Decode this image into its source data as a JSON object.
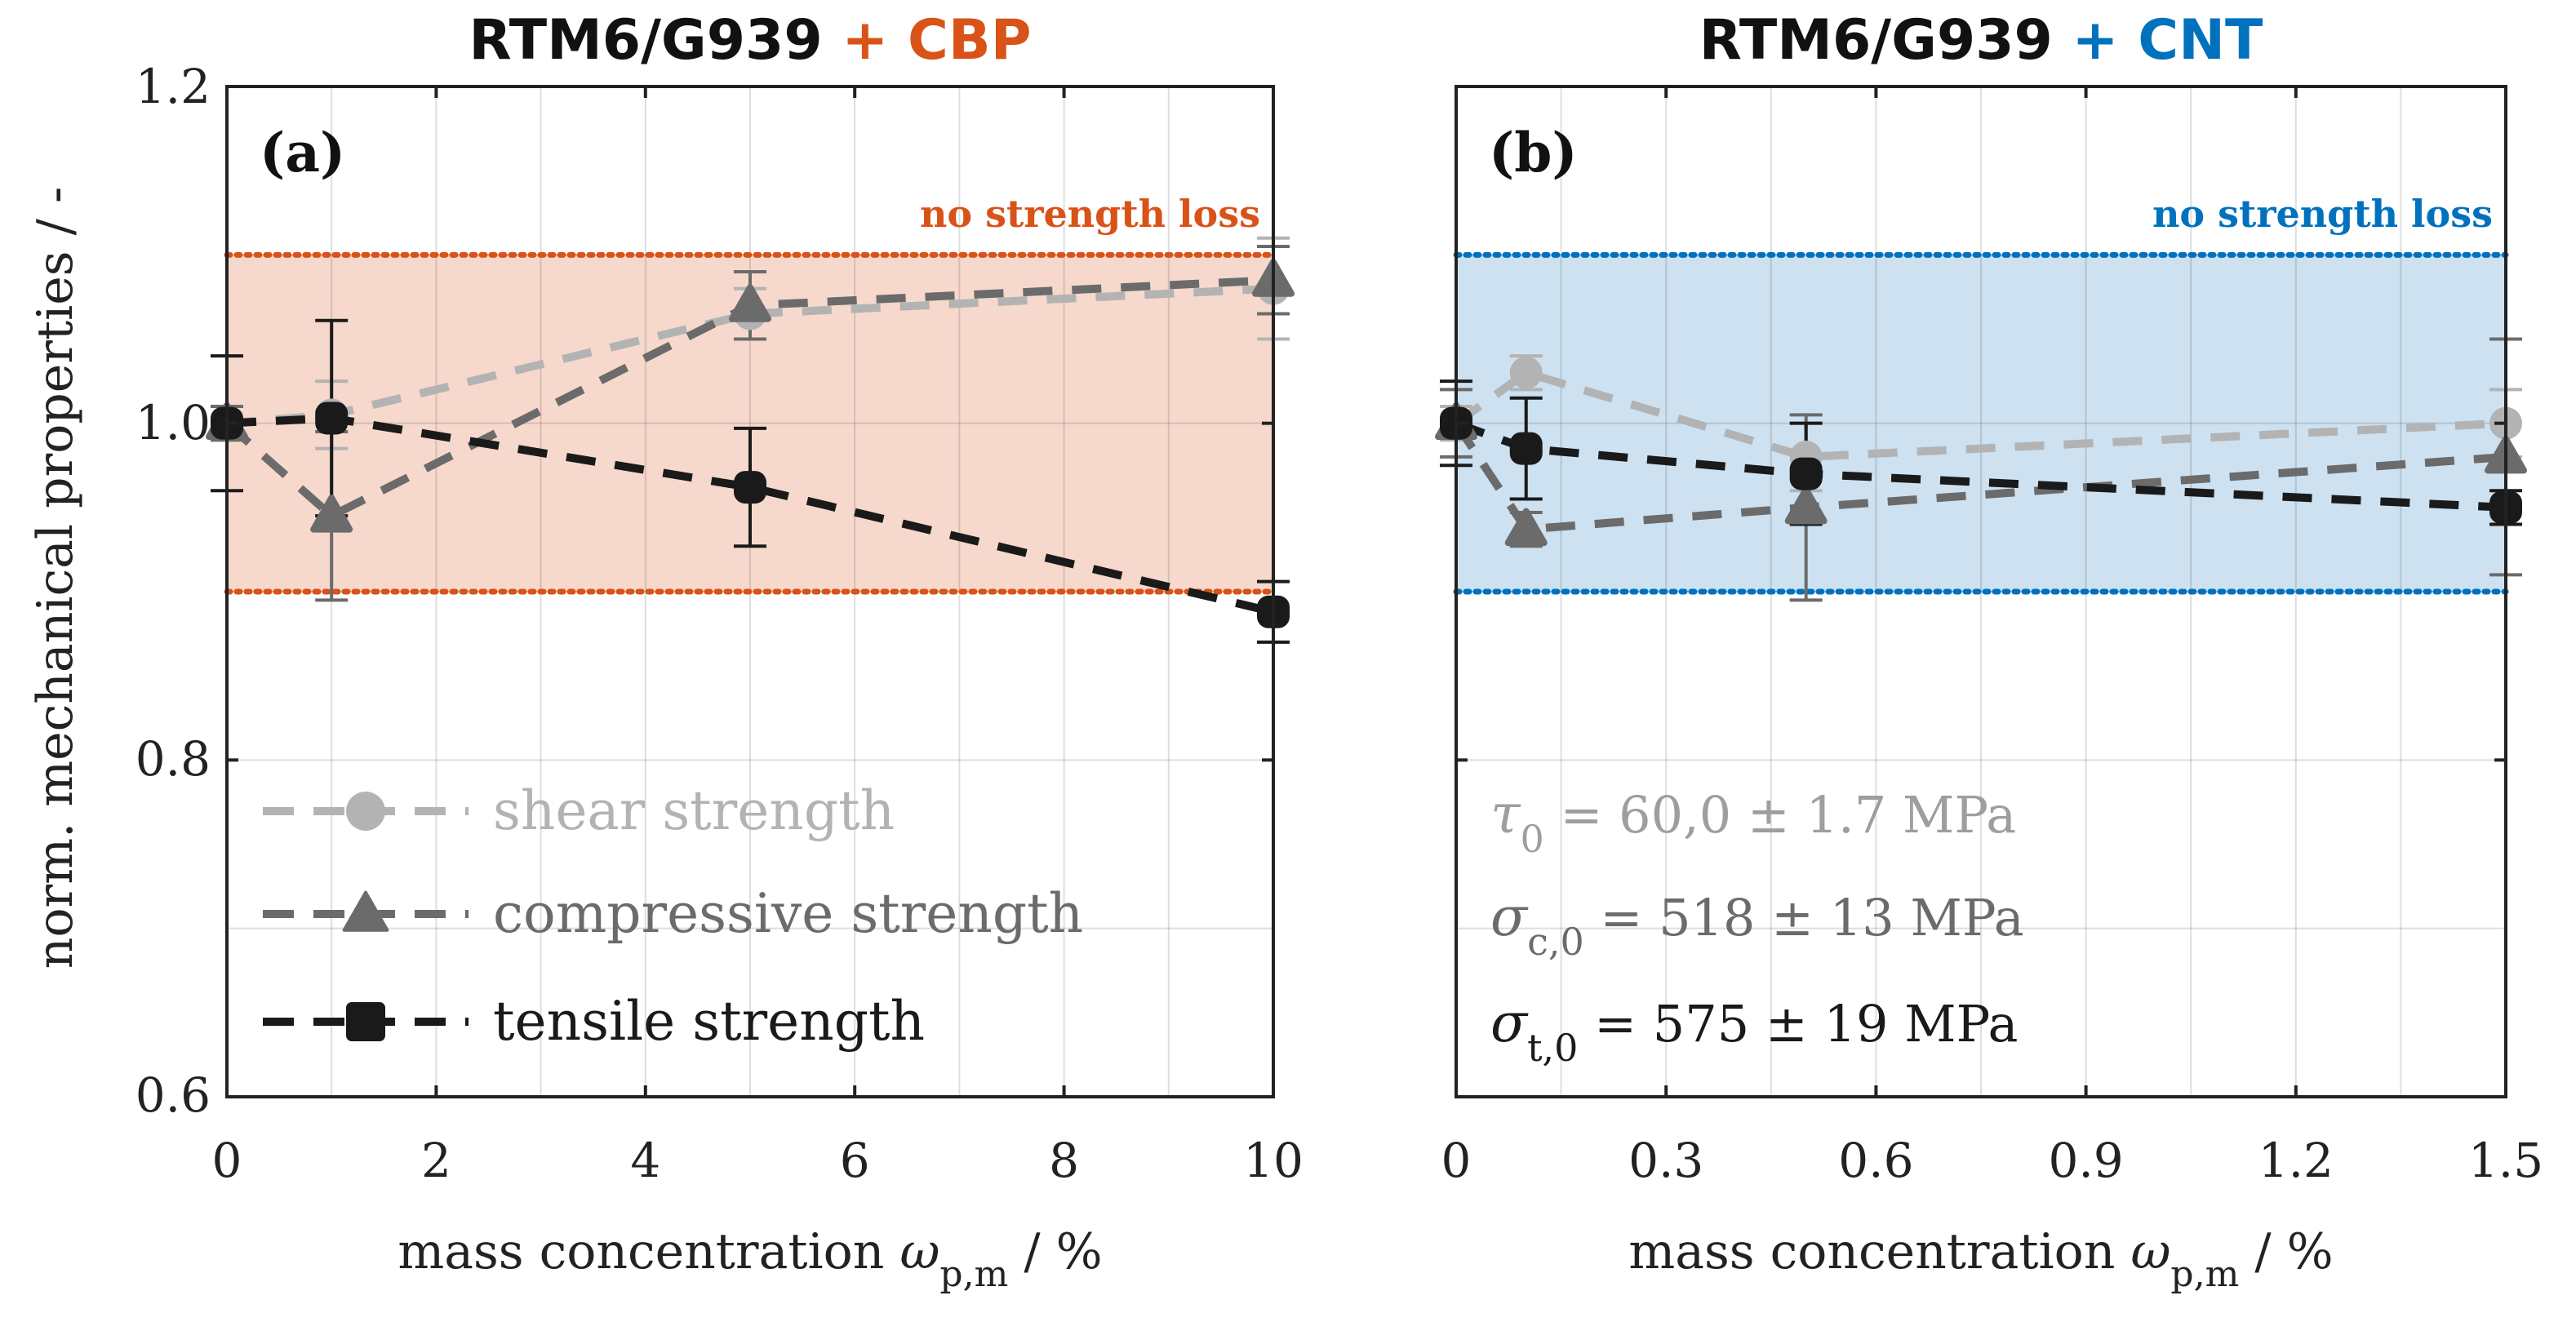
{
  "figure": {
    "ylabel": "norm. mechanical properties / -",
    "xlabel_prefix": "mass concentration ",
    "xlabel_symbol": "ω",
    "xlabel_sub": "p,m",
    "xlabel_suffix": " / %",
    "yticks": [
      "0.6",
      "0.8",
      "1.0",
      "1.2"
    ]
  },
  "legend": [
    {
      "label": "shear strength",
      "color": "#b3b3b3",
      "marker": "circle"
    },
    {
      "label": "compressive strength",
      "color": "#6b6b6b",
      "marker": "triangle"
    },
    {
      "label": "tensile strength",
      "color": "#1a1a1a",
      "marker": "square"
    }
  ],
  "reference_values": [
    {
      "symbol": "τ",
      "sub": "0",
      "value": " = 60,0 ± 1.7 MPa",
      "color": "#9e9e9e"
    },
    {
      "symbol": "σ",
      "sub": "c,0",
      "value": " = 518 ± 13 MPa",
      "color": "#6b6b6b"
    },
    {
      "symbol": "σ",
      "sub": "t,0",
      "value": " = 575 ± 19 MPa",
      "color": "#1a1a1a"
    }
  ],
  "chart_data": [
    {
      "type": "line",
      "panel_label": "(a)",
      "title_base": "RTM6/G939",
      "title_additive": "+ CBP",
      "accent": "#d95319",
      "band_fill": "#f6d9cc",
      "band_label": "no strength loss",
      "band": [
        0.9,
        1.1
      ],
      "xlim": [
        0,
        10
      ],
      "ylim": [
        0.6,
        1.2
      ],
      "xticks": [
        "0",
        "2",
        "4",
        "6",
        "8",
        "10"
      ],
      "series": [
        {
          "name": "shear strength",
          "x": [
            0,
            1,
            5,
            10
          ],
          "y": [
            1.0,
            1.005,
            1.065,
            1.08
          ],
          "err": [
            0.01,
            0.02,
            0.015,
            0.03
          ]
        },
        {
          "name": "compressive strength",
          "x": [
            0,
            1,
            5,
            10
          ],
          "y": [
            1.0,
            0.945,
            1.07,
            1.085
          ],
          "err": [
            0.01,
            0.05,
            0.02,
            0.02
          ]
        },
        {
          "name": "tensile strength",
          "x": [
            0,
            1,
            5,
            10
          ],
          "y": [
            1.0,
            1.003,
            0.962,
            0.888
          ],
          "err": [
            0.04,
            0.058,
            0.035,
            0.018
          ]
        }
      ]
    },
    {
      "type": "line",
      "panel_label": "(b)",
      "title_base": "RTM6/G939",
      "title_additive": "+ CNT",
      "accent": "#0072bd",
      "band_fill": "#cde1f1",
      "band_label": "no strength loss",
      "band": [
        0.9,
        1.1
      ],
      "xlim": [
        0,
        1.5
      ],
      "ylim": [
        0.6,
        1.2
      ],
      "xticks": [
        "0",
        "0.3",
        "0.6",
        "0.9",
        "1.2",
        "1.5"
      ],
      "series": [
        {
          "name": "shear strength",
          "x": [
            0,
            0.1,
            0.5,
            1.5
          ],
          "y": [
            1.0,
            1.03,
            0.98,
            1.0
          ],
          "err": [
            0.01,
            0.01,
            0.02,
            0.02
          ]
        },
        {
          "name": "compressive strength",
          "x": [
            0,
            0.1,
            0.5,
            1.5
          ],
          "y": [
            1.0,
            0.937,
            0.95,
            0.98
          ],
          "err": [
            0.02,
            0.01,
            0.055,
            0.07
          ]
        },
        {
          "name": "tensile strength",
          "x": [
            0,
            0.1,
            0.5,
            1.5
          ],
          "y": [
            1.0,
            0.985,
            0.97,
            0.95
          ],
          "err": [
            0.025,
            0.03,
            0.03,
            0.01
          ]
        }
      ]
    }
  ]
}
